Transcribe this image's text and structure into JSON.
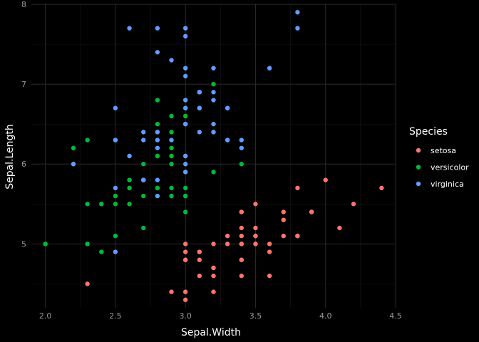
{
  "chart_data": {
    "type": "scatter",
    "xlabel": "Sepal.Width",
    "ylabel": "Sepal.Length",
    "xlim": [
      1.9,
      4.5
    ],
    "ylim": [
      4.2,
      8.0
    ],
    "x_ticks": [
      "2.0",
      "2.5",
      "3.0",
      "3.5",
      "4.0",
      "4.5"
    ],
    "y_ticks": [
      "5",
      "6",
      "7",
      "8"
    ],
    "grid": true,
    "legend": {
      "title": "Species",
      "position": "right"
    },
    "series": [
      {
        "name": "setosa",
        "color": "#F8766D",
        "points": [
          [
            3.5,
            5.1
          ],
          [
            3.0,
            4.9
          ],
          [
            3.2,
            4.7
          ],
          [
            3.1,
            4.6
          ],
          [
            3.6,
            5.0
          ],
          [
            3.9,
            5.4
          ],
          [
            3.4,
            4.6
          ],
          [
            3.4,
            5.0
          ],
          [
            2.9,
            4.4
          ],
          [
            3.1,
            4.9
          ],
          [
            3.7,
            5.4
          ],
          [
            3.4,
            4.8
          ],
          [
            3.0,
            4.8
          ],
          [
            3.0,
            4.3
          ],
          [
            4.0,
            5.8
          ],
          [
            4.4,
            5.7
          ],
          [
            3.9,
            5.4
          ],
          [
            3.5,
            5.1
          ],
          [
            3.8,
            5.7
          ],
          [
            3.8,
            5.1
          ],
          [
            3.4,
            5.4
          ],
          [
            3.7,
            5.1
          ],
          [
            3.6,
            4.6
          ],
          [
            3.3,
            5.1
          ],
          [
            3.4,
            4.8
          ],
          [
            3.0,
            5.0
          ],
          [
            3.4,
            5.0
          ],
          [
            3.5,
            5.2
          ],
          [
            3.4,
            5.2
          ],
          [
            3.2,
            4.7
          ],
          [
            3.1,
            4.8
          ],
          [
            3.4,
            5.4
          ],
          [
            4.1,
            5.2
          ],
          [
            4.2,
            5.5
          ],
          [
            3.1,
            4.9
          ],
          [
            3.2,
            5.0
          ],
          [
            3.5,
            5.5
          ],
          [
            3.6,
            4.9
          ],
          [
            3.0,
            4.4
          ],
          [
            3.4,
            5.1
          ],
          [
            3.5,
            5.0
          ],
          [
            2.3,
            4.5
          ],
          [
            3.2,
            4.4
          ],
          [
            3.5,
            5.0
          ],
          [
            3.8,
            5.1
          ],
          [
            3.0,
            4.8
          ],
          [
            3.8,
            5.1
          ],
          [
            3.2,
            4.6
          ],
          [
            3.7,
            5.3
          ],
          [
            3.3,
            5.0
          ]
        ]
      },
      {
        "name": "versicolor",
        "color": "#00BA38",
        "points": [
          [
            3.2,
            7.0
          ],
          [
            3.2,
            6.4
          ],
          [
            3.1,
            6.9
          ],
          [
            2.3,
            5.5
          ],
          [
            2.8,
            6.5
          ],
          [
            2.8,
            5.7
          ],
          [
            3.3,
            6.3
          ],
          [
            2.4,
            4.9
          ],
          [
            2.9,
            6.6
          ],
          [
            2.7,
            5.2
          ],
          [
            2.0,
            5.0
          ],
          [
            3.0,
            5.9
          ],
          [
            2.2,
            6.0
          ],
          [
            2.9,
            6.1
          ],
          [
            2.9,
            5.6
          ],
          [
            3.1,
            6.7
          ],
          [
            3.0,
            5.6
          ],
          [
            2.7,
            5.8
          ],
          [
            2.2,
            6.2
          ],
          [
            2.5,
            5.6
          ],
          [
            3.2,
            5.9
          ],
          [
            2.8,
            6.1
          ],
          [
            2.5,
            6.3
          ],
          [
            2.8,
            6.1
          ],
          [
            2.9,
            6.4
          ],
          [
            3.0,
            6.6
          ],
          [
            2.8,
            6.8
          ],
          [
            3.0,
            6.7
          ],
          [
            2.9,
            6.0
          ],
          [
            2.6,
            5.7
          ],
          [
            2.4,
            5.5
          ],
          [
            2.4,
            5.5
          ],
          [
            2.7,
            5.8
          ],
          [
            2.7,
            6.0
          ],
          [
            3.0,
            5.4
          ],
          [
            3.4,
            6.0
          ],
          [
            3.1,
            6.7
          ],
          [
            2.3,
            6.3
          ],
          [
            3.0,
            5.6
          ],
          [
            2.5,
            5.5
          ],
          [
            2.6,
            5.5
          ],
          [
            3.0,
            6.1
          ],
          [
            2.6,
            5.8
          ],
          [
            2.3,
            5.0
          ],
          [
            2.7,
            5.6
          ],
          [
            3.0,
            5.7
          ],
          [
            2.9,
            5.7
          ],
          [
            2.9,
            6.2
          ],
          [
            2.5,
            5.1
          ],
          [
            2.8,
            5.7
          ]
        ]
      },
      {
        "name": "virginica",
        "color": "#619CFF",
        "points": [
          [
            3.3,
            6.3
          ],
          [
            2.7,
            5.8
          ],
          [
            3.0,
            7.1
          ],
          [
            2.9,
            6.3
          ],
          [
            3.0,
            6.5
          ],
          [
            3.0,
            7.6
          ],
          [
            2.5,
            4.9
          ],
          [
            2.9,
            7.3
          ],
          [
            2.5,
            6.7
          ],
          [
            3.6,
            7.2
          ],
          [
            3.2,
            6.5
          ],
          [
            2.7,
            6.4
          ],
          [
            3.0,
            6.8
          ],
          [
            2.5,
            5.7
          ],
          [
            2.8,
            5.8
          ],
          [
            3.2,
            6.4
          ],
          [
            3.0,
            6.5
          ],
          [
            3.8,
            7.7
          ],
          [
            2.6,
            7.7
          ],
          [
            2.2,
            6.0
          ],
          [
            3.2,
            6.9
          ],
          [
            2.8,
            5.6
          ],
          [
            2.8,
            7.7
          ],
          [
            2.7,
            6.3
          ],
          [
            3.3,
            6.7
          ],
          [
            3.2,
            7.2
          ],
          [
            2.8,
            6.2
          ],
          [
            3.0,
            6.1
          ],
          [
            2.8,
            6.4
          ],
          [
            3.0,
            7.2
          ],
          [
            2.8,
            7.4
          ],
          [
            3.8,
            7.9
          ],
          [
            2.8,
            6.4
          ],
          [
            2.8,
            6.3
          ],
          [
            2.6,
            6.1
          ],
          [
            3.0,
            7.7
          ],
          [
            3.4,
            6.3
          ],
          [
            3.1,
            6.4
          ],
          [
            3.0,
            6.0
          ],
          [
            3.1,
            6.9
          ],
          [
            3.1,
            6.7
          ],
          [
            3.1,
            6.9
          ],
          [
            2.7,
            5.8
          ],
          [
            3.2,
            6.8
          ],
          [
            3.3,
            6.7
          ],
          [
            3.0,
            6.7
          ],
          [
            2.5,
            6.3
          ],
          [
            3.0,
            6.5
          ],
          [
            3.4,
            6.2
          ],
          [
            3.0,
            5.9
          ]
        ]
      }
    ]
  }
}
